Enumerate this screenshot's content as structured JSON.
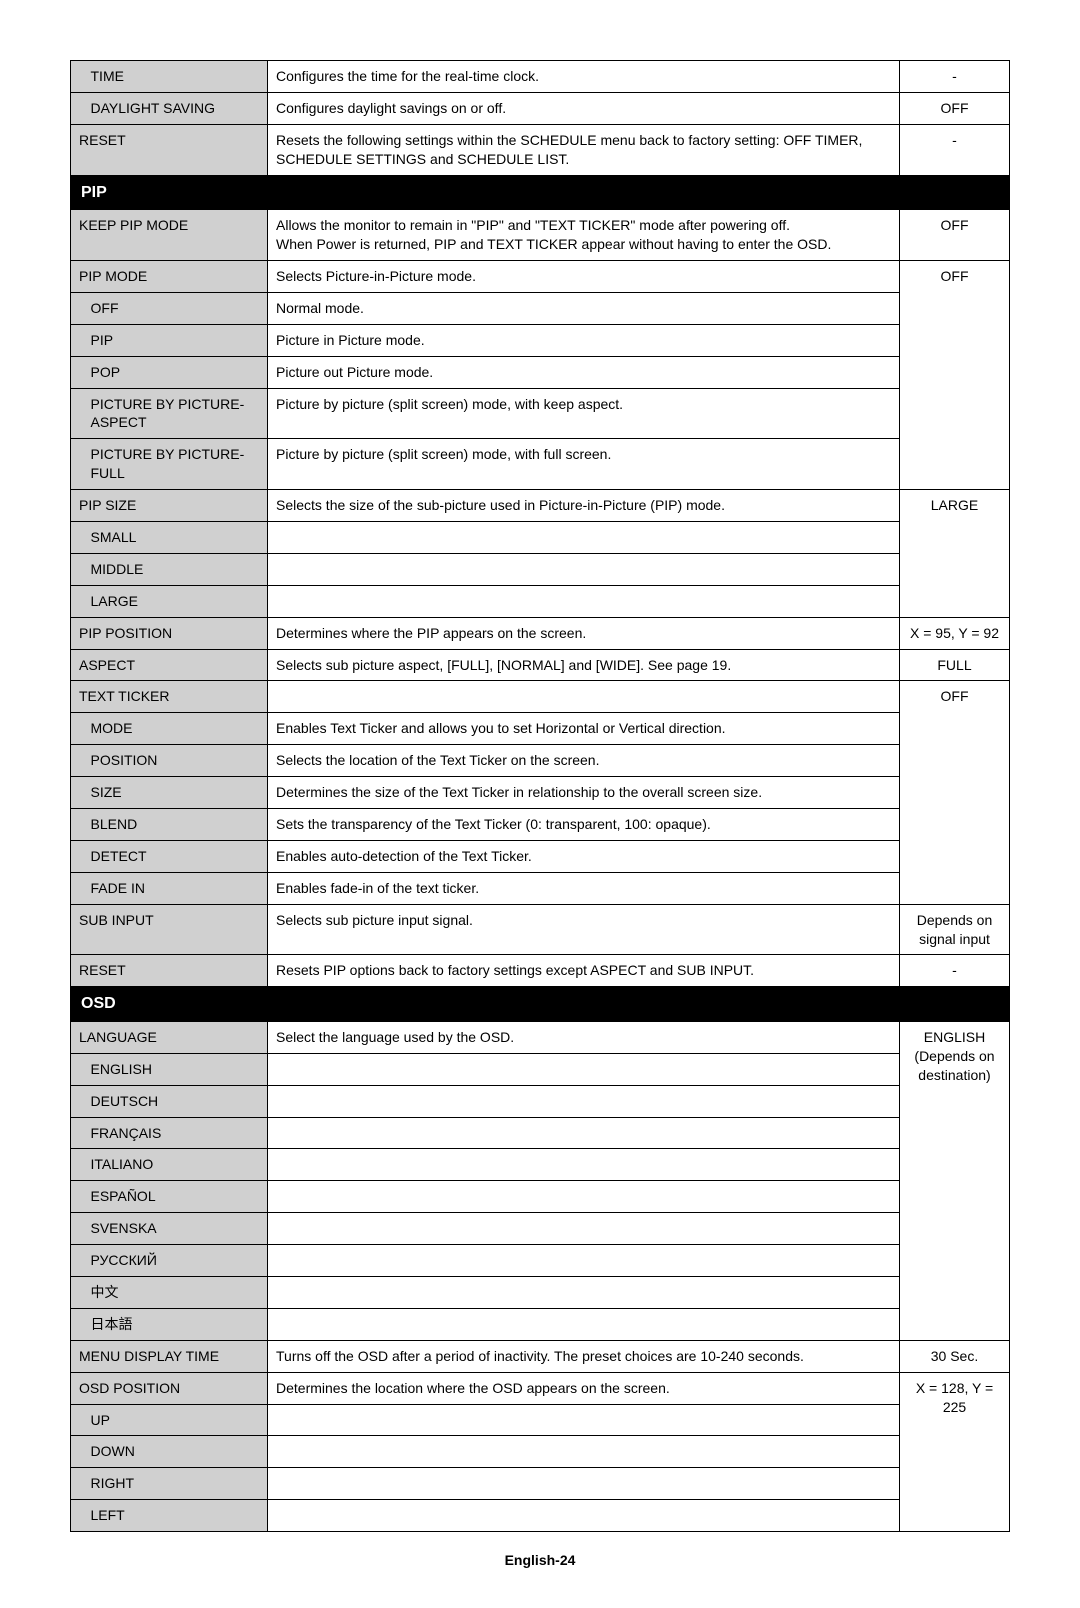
{
  "footer": "English-24",
  "col_widths": {
    "indent": 12,
    "label": 185,
    "val": 110
  },
  "rows": [
    {
      "type": "sub",
      "label": "TIME",
      "desc": "Configures the time for the real-time clock.",
      "val": "-"
    },
    {
      "type": "sub",
      "label": "DAYLIGHT SAVING",
      "desc": "Configures daylight savings on or off.",
      "val": "OFF"
    },
    {
      "type": "top",
      "label": "RESET",
      "desc": "Resets the following settings within the SCHEDULE menu back to factory setting: OFF TIMER, SCHEDULE SETTINGS and SCHEDULE LIST.",
      "val": "-"
    },
    {
      "type": "section",
      "label": "PIP"
    },
    {
      "type": "top",
      "label": "KEEP PIP MODE",
      "desc": "Allows the monitor to remain in \"PIP\" and \"TEXT TICKER\" mode after powering off.\nWhen Power is returned, PIP and TEXT TICKER appear without having to enter the OSD.",
      "val": "OFF"
    },
    {
      "type": "group-top",
      "label": "PIP MODE",
      "desc": "Selects Picture-in-Picture mode.",
      "val": "OFF",
      "val_span": 6
    },
    {
      "type": "sub-nr",
      "label": "OFF",
      "desc": "Normal mode."
    },
    {
      "type": "sub-nr",
      "label": "PIP",
      "desc": "Picture in Picture mode."
    },
    {
      "type": "sub-nr",
      "label": "POP",
      "desc": "Picture out Picture mode."
    },
    {
      "type": "sub-nr",
      "label": "PICTURE BY PICTURE-ASPECT",
      "desc": "Picture by picture (split screen) mode, with keep aspect."
    },
    {
      "type": "sub-nr",
      "label": "PICTURE BY PICTURE-FULL",
      "desc": "Picture by picture (split screen) mode, with full screen."
    },
    {
      "type": "group-top",
      "label": "PIP SIZE",
      "desc": "Selects the size of the sub-picture used in Picture-in-Picture (PIP) mode.",
      "val": "LARGE",
      "val_span": 4
    },
    {
      "type": "sub-nr",
      "label": "SMALL",
      "desc": ""
    },
    {
      "type": "sub-nr",
      "label": "MIDDLE",
      "desc": ""
    },
    {
      "type": "sub-nr",
      "label": "LARGE",
      "desc": ""
    },
    {
      "type": "top",
      "label": "PIP POSITION",
      "desc": "Determines where the PIP appears on the screen.",
      "val": "X = 95, Y = 92"
    },
    {
      "type": "top",
      "label": "ASPECT",
      "desc": "Selects sub picture aspect, [FULL], [NORMAL] and [WIDE]. See page 19.",
      "val": "FULL"
    },
    {
      "type": "group-top",
      "label": "TEXT TICKER",
      "desc": "",
      "val": "OFF",
      "val_span": 7
    },
    {
      "type": "sub-nr",
      "label": "MODE",
      "desc": "Enables Text Ticker and allows you to set Horizontal or Vertical direction."
    },
    {
      "type": "sub-nr",
      "label": "POSITION",
      "desc": "Selects the location of the Text Ticker on the screen."
    },
    {
      "type": "sub-nr",
      "label": "SIZE",
      "desc": "Determines the size of the Text Ticker in relationship to the overall screen size."
    },
    {
      "type": "sub-nr",
      "label": "BLEND",
      "desc": "Sets the transparency of the Text Ticker (0: transparent, 100: opaque)."
    },
    {
      "type": "sub-nr",
      "label": "DETECT",
      "desc": "Enables auto-detection of the Text Ticker."
    },
    {
      "type": "sub-nr",
      "label": "FADE IN",
      "desc": "Enables fade-in of the text ticker."
    },
    {
      "type": "top",
      "label": "SUB INPUT",
      "desc": "Selects sub picture input signal.",
      "val": "Depends on signal input"
    },
    {
      "type": "top",
      "label": "RESET",
      "desc": "Resets PIP options back to factory settings except ASPECT and SUB INPUT.",
      "val": "-"
    },
    {
      "type": "section",
      "label": "OSD"
    },
    {
      "type": "group-top",
      "label": "LANGUAGE",
      "desc": "Select the language used by the OSD.",
      "val": "ENGLISH\n(Depends on destination)",
      "val_span": 10
    },
    {
      "type": "sub-nr",
      "label": "ENGLISH",
      "desc": ""
    },
    {
      "type": "sub-nr",
      "label": "DEUTSCH",
      "desc": ""
    },
    {
      "type": "sub-nr",
      "label": "FRANÇAIS",
      "desc": ""
    },
    {
      "type": "sub-nr",
      "label": "ITALIANO",
      "desc": ""
    },
    {
      "type": "sub-nr",
      "label": "ESPAÑOL",
      "desc": ""
    },
    {
      "type": "sub-nr",
      "label": "SVENSKA",
      "desc": ""
    },
    {
      "type": "sub-nr",
      "label": "РУССКИЙ",
      "desc": ""
    },
    {
      "type": "sub-nr",
      "label": "中文",
      "desc": ""
    },
    {
      "type": "sub-nr",
      "label": "日本語",
      "desc": ""
    },
    {
      "type": "top",
      "label": "MENU DISPLAY TIME",
      "desc": "Turns off the OSD after a period of inactivity. The preset choices are 10-240 seconds.",
      "val": "30 Sec."
    },
    {
      "type": "group-top",
      "label": "OSD POSITION",
      "desc": "Determines the location where the OSD appears on the screen.",
      "val": "X = 128, Y = 225",
      "val_span": 5
    },
    {
      "type": "sub-nr",
      "label": "UP",
      "desc": ""
    },
    {
      "type": "sub-nr",
      "label": "DOWN",
      "desc": ""
    },
    {
      "type": "sub-nr",
      "label": "RIGHT",
      "desc": ""
    },
    {
      "type": "sub-nr",
      "label": "LEFT",
      "desc": ""
    }
  ]
}
